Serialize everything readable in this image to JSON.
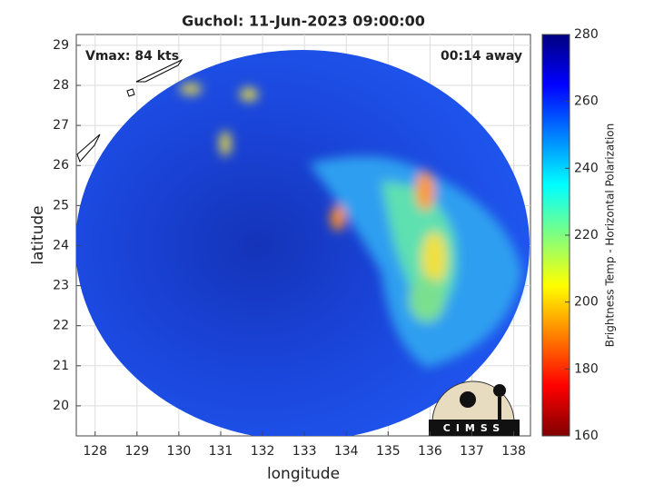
{
  "map": {
    "title": "Guchol: 11-Jun-2023 09:00:00",
    "xlabel": "longitude",
    "ylabel": "latitude",
    "xlim": [
      127.55,
      138.4
    ],
    "ylim": [
      19.25,
      29.27
    ],
    "xticks": [
      128,
      129,
      130,
      131,
      132,
      133,
      134,
      135,
      136,
      137,
      138
    ],
    "yticks": [
      20,
      21,
      22,
      23,
      24,
      25,
      26,
      27,
      28,
      29
    ],
    "grid": true,
    "annotations": [
      "Vmax: 84 kts",
      "00:14 away"
    ],
    "colorbar": {
      "label": "Brightness Temp - Horizontal Polarization",
      "lim": [
        160,
        280
      ],
      "ticks": [
        160,
        180,
        200,
        220,
        240,
        260,
        280
      ],
      "colormap": "jet"
    },
    "logo": "CIMSS"
  }
}
